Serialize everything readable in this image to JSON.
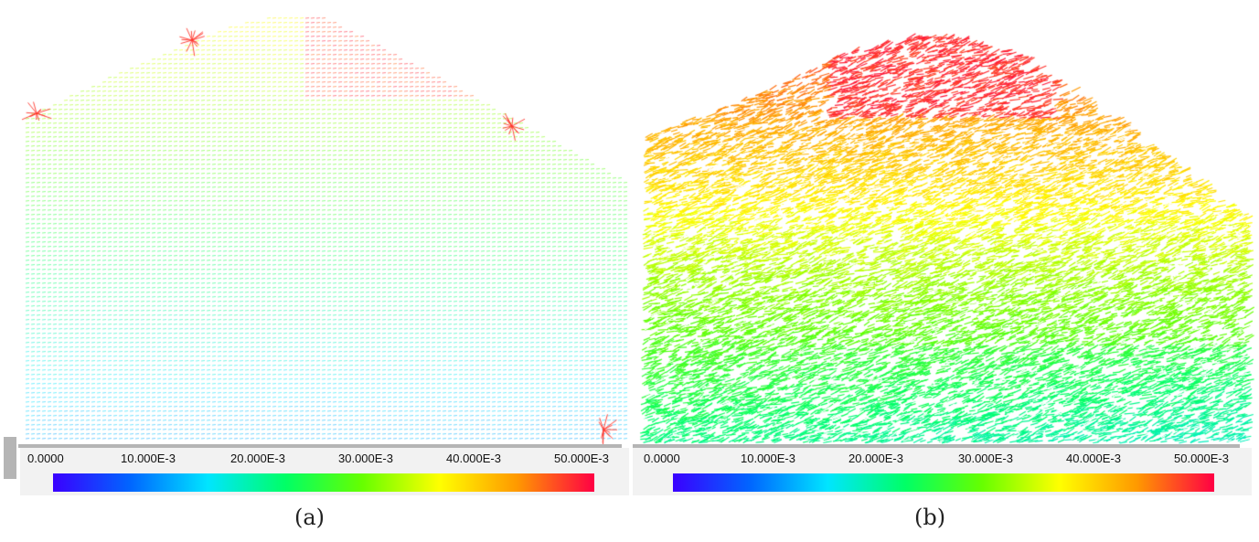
{
  "panels": [
    {
      "caption": "(a)",
      "legend": {
        "ticks": [
          "0.0000",
          "10.000E-3",
          "20.000E-3",
          "30.000E-3",
          "40.000E-3",
          "50.000E-3"
        ],
        "colors": [
          "#3a00ff",
          "#0066ff",
          "#00e5ff",
          "#00ff66",
          "#66ff00",
          "#ffff00",
          "#ff9900",
          "#ff0044"
        ]
      }
    },
    {
      "caption": "(b)",
      "legend": {
        "ticks": [
          "0.0000",
          "10.000E-3",
          "20.000E-3",
          "30.000E-3",
          "40.000E-3",
          "50.000E-3"
        ],
        "colors": [
          "#3a00ff",
          "#0066ff",
          "#00e5ff",
          "#00ff66",
          "#66ff00",
          "#ffff00",
          "#ff9900",
          "#ff0044"
        ]
      }
    }
  ]
}
